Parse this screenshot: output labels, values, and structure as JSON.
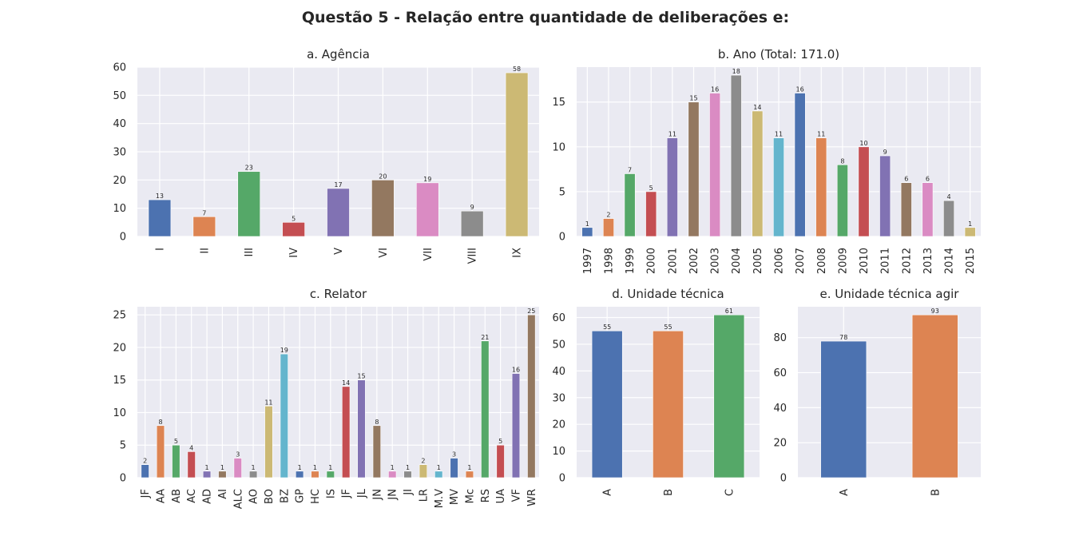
{
  "figure": {
    "suptitle": "Questão 5 - Relação entre quantidade de deliberações e:"
  },
  "palette": [
    "#4c72b0",
    "#dd8452",
    "#55a868",
    "#c44e52",
    "#8172b3",
    "#937860",
    "#da8bc3",
    "#8c8c8c",
    "#ccb974",
    "#64b5cd"
  ],
  "chart_data": [
    {
      "id": "agencia",
      "type": "bar",
      "title": "a. Agência",
      "categories": [
        "I",
        "II",
        "III",
        "IV",
        "V",
        "VI",
        "VII",
        "VIII",
        "IX"
      ],
      "values": [
        13,
        7,
        23,
        5,
        17,
        20,
        19,
        9,
        58
      ],
      "ylim": [
        0,
        60
      ],
      "yticks": [
        0,
        10,
        20,
        30,
        40,
        50,
        60
      ],
      "grid": true
    },
    {
      "id": "ano",
      "type": "bar",
      "title": "b. Ano (Total: 171.0)",
      "categories": [
        "1997",
        "1998",
        "1999",
        "2000",
        "2001",
        "2002",
        "2003",
        "2004",
        "2005",
        "2006",
        "2007",
        "2008",
        "2009",
        "2010",
        "2011",
        "2012",
        "2013",
        "2014",
        "2015"
      ],
      "values": [
        1,
        2,
        7,
        5,
        11,
        15,
        16,
        18,
        14,
        11,
        16,
        11,
        8,
        10,
        9,
        6,
        6,
        4,
        1
      ],
      "ylim": [
        0,
        18.9
      ],
      "yticks": [
        0,
        5,
        10,
        15
      ],
      "grid": true
    },
    {
      "id": "relator",
      "type": "bar",
      "title": "c. Relator",
      "categories": [
        "JF",
        "AA",
        "AB",
        "AC",
        "AD",
        "AI",
        "ALC",
        "AO",
        "BO",
        "BZ",
        "GP",
        "HC",
        "IS",
        "JF",
        "JL",
        "JN",
        "JN",
        "JI",
        "LR",
        "M.V",
        "MV",
        "Mc",
        "RS",
        "UA",
        "VF",
        "WR"
      ],
      "values": [
        2,
        8,
        5,
        4,
        1,
        1,
        3,
        1,
        11,
        19,
        1,
        1,
        1,
        14,
        15,
        8,
        1,
        1,
        2,
        1,
        3,
        1,
        21,
        5,
        16,
        25
      ],
      "ylim": [
        0,
        26.25
      ],
      "yticks": [
        0,
        5,
        10,
        15,
        20,
        25
      ],
      "grid": true
    },
    {
      "id": "unidade",
      "type": "bar",
      "title": "d. Unidade técnica",
      "categories": [
        "A",
        "B",
        "C"
      ],
      "values": [
        55,
        55,
        61
      ],
      "ylim": [
        0,
        64.05
      ],
      "yticks": [
        0,
        10,
        20,
        30,
        40,
        50,
        60
      ],
      "grid": true
    },
    {
      "id": "unidade_agir",
      "type": "bar",
      "title": "e. Unidade técnica agir",
      "categories": [
        "A",
        "B"
      ],
      "values": [
        78,
        93
      ],
      "ylim": [
        0,
        97.65
      ],
      "yticks": [
        0,
        20,
        40,
        60,
        80
      ],
      "grid": true
    }
  ]
}
